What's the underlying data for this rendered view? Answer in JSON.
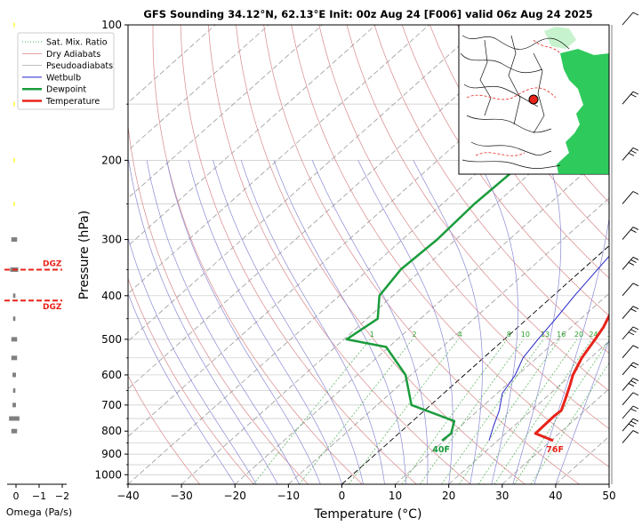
{
  "chart_data": {
    "type": "line",
    "subtype": "skew-T log-P sounding",
    "title": "GFS Sounding 34.12°N, 62.13°E Init: 00z Aug 24 [F006] valid 06z Aug 24 2025",
    "xlabel": "Temperature (°C)",
    "ylabel": "Pressure (hPa)",
    "xlim": [
      -40,
      50
    ],
    "ylim": [
      1050,
      100
    ],
    "y_scale": "log",
    "x_ticks": [
      "−40",
      "−30",
      "−20",
      "−10",
      "0",
      "10",
      "20",
      "30",
      "40",
      "50"
    ],
    "y_ticks": [
      "100",
      "200",
      "300",
      "400",
      "500",
      "600",
      "700",
      "800",
      "900",
      "1000"
    ],
    "grid": true,
    "legend_position": "top-left",
    "legend": [
      "Sat. Mix. Ratio",
      "Dry Adiabats",
      "Pseudoadiabats",
      "Wetbulb",
      "Dewpoint",
      "Temperature"
    ],
    "mixing_ratio_labels": [
      "1",
      "2",
      "4",
      "8",
      "10",
      "13",
      "16",
      "20",
      "24",
      "30",
      "36"
    ],
    "series": [
      {
        "name": "Temperature",
        "color": "#e8231a",
        "points": [
          [
            30.4,
            840
          ],
          [
            25.6,
            810
          ],
          [
            25.4,
            740
          ],
          [
            25.6,
            720
          ],
          [
            24.0,
            680
          ],
          [
            21.8,
            630
          ],
          [
            20.3,
            600
          ],
          [
            18.4,
            550
          ],
          [
            17.0,
            500
          ],
          [
            16.0,
            470
          ],
          [
            14.0,
            430
          ],
          [
            12.5,
            400
          ],
          [
            11.4,
            370
          ],
          [
            9.4,
            330
          ],
          [
            7.7,
            300
          ],
          [
            4.8,
            270
          ],
          [
            0.6,
            240
          ],
          [
            -2.7,
            220
          ],
          [
            -6.4,
            200
          ],
          [
            -16.8,
            150
          ],
          [
            -21.8,
            130
          ],
          [
            -26.4,
            115
          ],
          [
            -30.4,
            100
          ]
        ]
      },
      {
        "name": "Dewpoint",
        "color": "#1a9c3c",
        "points": [
          [
            9.6,
            840
          ],
          [
            9.8,
            810
          ],
          [
            7.8,
            760
          ],
          [
            -3.6,
            700
          ],
          [
            -11.0,
            600
          ],
          [
            -20.5,
            520
          ],
          [
            -29.5,
            500
          ],
          [
            -28.0,
            450
          ],
          [
            -32.5,
            400
          ],
          [
            -34.0,
            350
          ],
          [
            -33.5,
            300
          ],
          [
            -34.0,
            250
          ],
          [
            -33.5,
            200
          ],
          [
            -40.5,
            150
          ],
          [
            -47.0,
            100
          ]
        ]
      },
      {
        "name": "Wetbulb",
        "color": "#2424c8",
        "points": [
          [
            18.4,
            840
          ],
          [
            16.2,
            780
          ],
          [
            14.0,
            720
          ],
          [
            11.0,
            660
          ],
          [
            9.5,
            600
          ],
          [
            7.4,
            550
          ],
          [
            6.3,
            500
          ],
          [
            5.3,
            450
          ],
          [
            4.0,
            400
          ],
          [
            2.8,
            350
          ],
          [
            1.4,
            300
          ],
          [
            -1.3,
            250
          ],
          [
            -4.6,
            200
          ],
          [
            -17.0,
            150
          ]
        ]
      }
    ],
    "surface_labels": {
      "temperature": "76F",
      "dewpoint": "40F"
    },
    "omega_panel": {
      "xlabel": "Omega (Pa/s)",
      "xticks": [
        "0",
        "−1",
        "−2"
      ],
      "dgz_label": "DGZ",
      "dgz_pressures": [
        350,
        410
      ]
    }
  },
  "colors": {
    "temperature": "#e8231a",
    "dewpoint": "#1a9c3c",
    "wetbulb": "#2424c8",
    "dry_adiabat": "#d9888a",
    "pseudoadiabat": "#8a8ad6",
    "isotherm": "#9a9a9a",
    "mixing_ratio": "#4caf50"
  },
  "inset_map": {
    "description_icon": "map-inset",
    "marker_color": "#e8231a"
  }
}
